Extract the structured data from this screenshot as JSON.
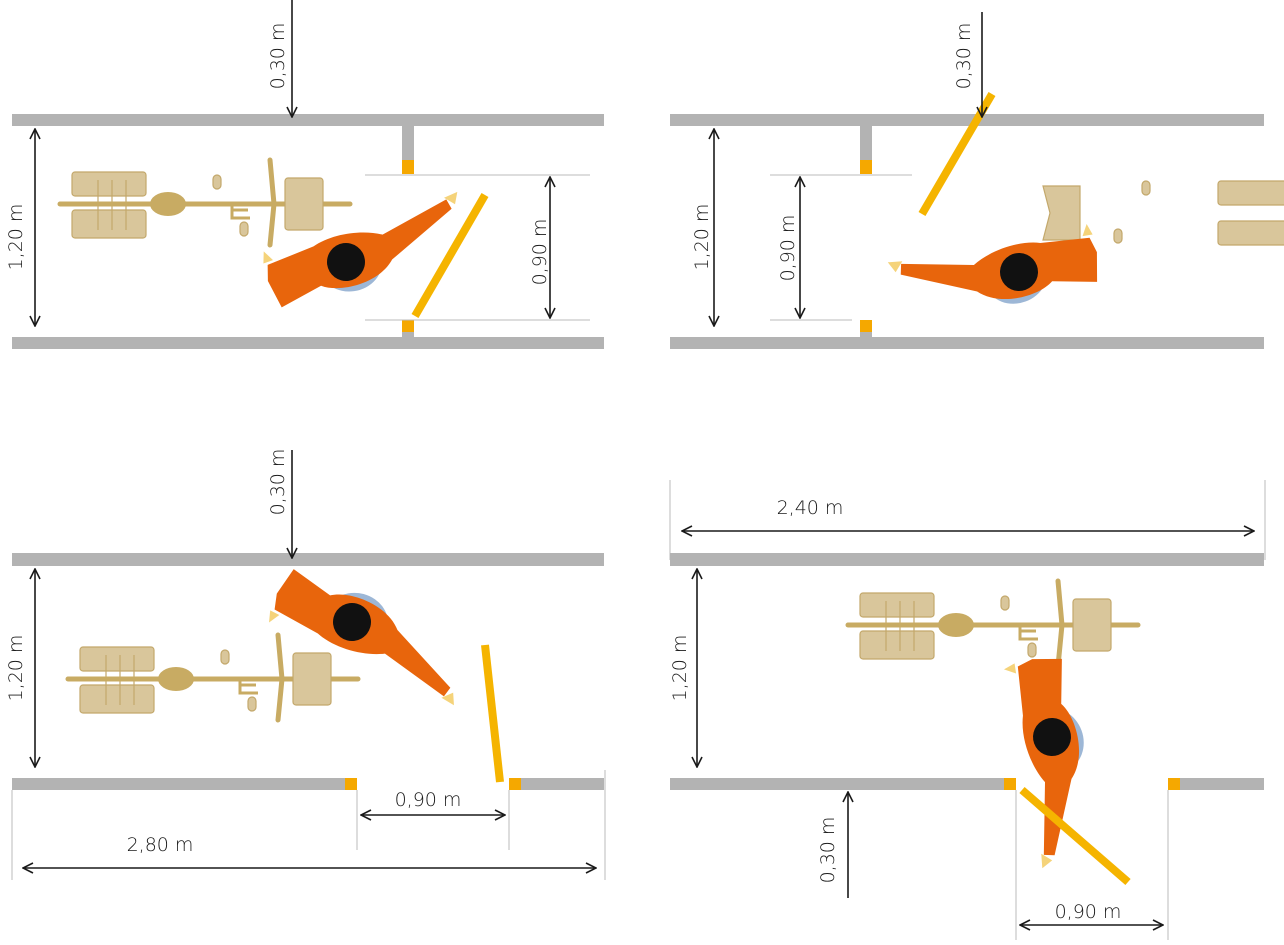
{
  "panels": [
    {
      "labels": [
        "0,30 m",
        "1,20 m",
        "0,90 m"
      ]
    },
    {
      "labels": [
        "0,30 m",
        "1,20 m",
        "0,90 m"
      ]
    },
    {
      "labels": [
        "0,30 m",
        "1,20 m",
        "0,90 m",
        "2,80 m"
      ]
    },
    {
      "labels": [
        "2,40 m",
        "1,20 m",
        "0,30 m",
        "0,90 m"
      ]
    }
  ]
}
